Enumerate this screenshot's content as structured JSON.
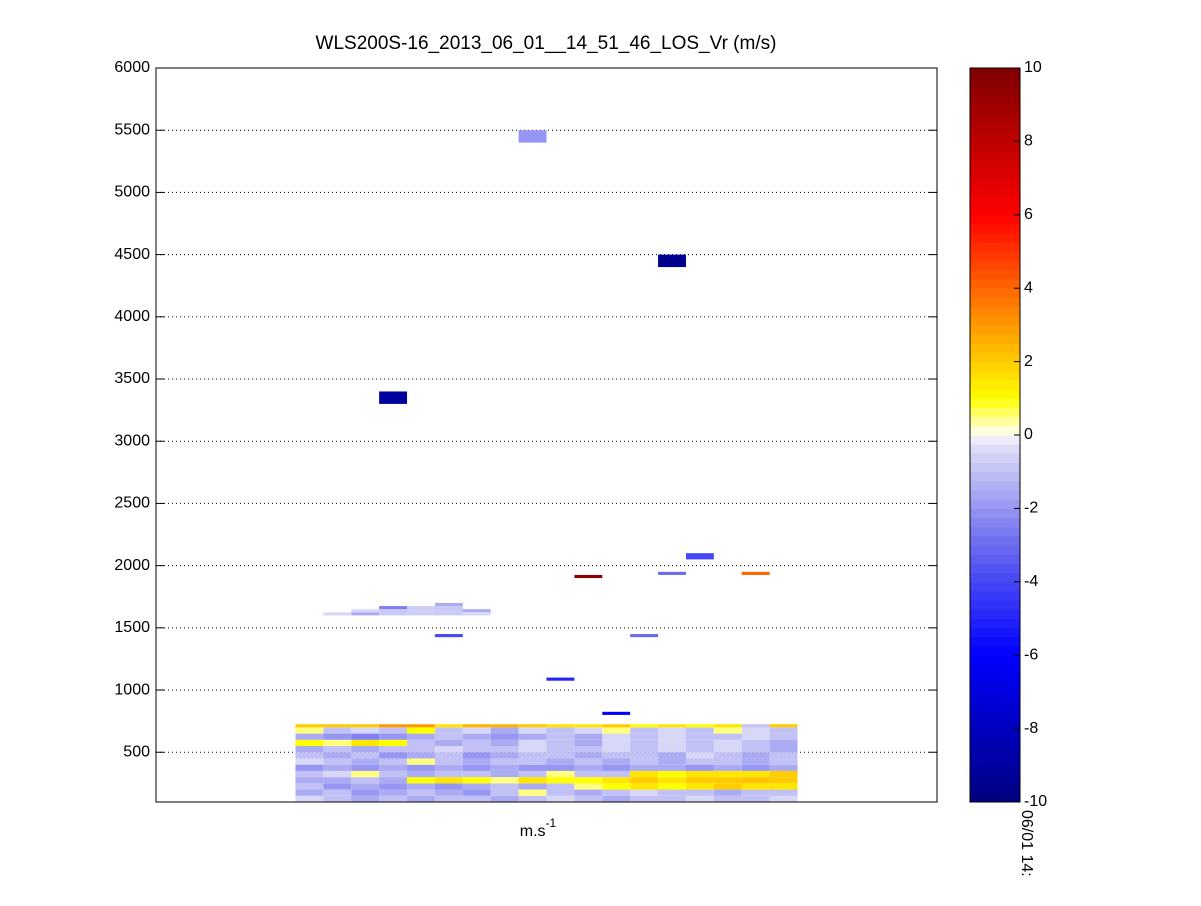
{
  "chart_data": {
    "type": "heatmap",
    "title": "WLS200S-16_2013_06_01__14_51_46_LOS_Vr (m/s)",
    "xlabel": {
      "base": "m.s",
      "exponent": "-1"
    },
    "x_tick_label": "06/01 14:",
    "xlim": [
      0,
      28
    ],
    "ylim": [
      100,
      6000
    ],
    "yticks": [
      500,
      1000,
      1500,
      2000,
      2500,
      3000,
      3500,
      4000,
      4500,
      5000,
      5500,
      6000
    ],
    "grid": true,
    "clim": [
      -10,
      10
    ],
    "cticks": [
      -10,
      -8,
      -6,
      -4,
      -2,
      0,
      2,
      4,
      6,
      8,
      10
    ],
    "colorscale": [
      [
        -10,
        "#00007f"
      ],
      [
        -6,
        "#0000ff"
      ],
      [
        -3,
        "#6a6af0"
      ],
      [
        -0.2,
        "#e4e4f8"
      ],
      [
        0,
        "#ffffff"
      ],
      [
        1,
        "#ffff00"
      ],
      [
        2,
        "#ffcc00"
      ],
      [
        4,
        "#ff6600"
      ],
      [
        6,
        "#ff0000"
      ],
      [
        10,
        "#7f0000"
      ]
    ],
    "grid_block": {
      "x_edges": [
        5,
        6,
        7,
        8,
        9,
        10,
        11,
        12,
        13,
        14,
        15,
        16,
        17,
        18,
        19,
        20,
        21,
        22,
        23
      ],
      "y_edges": [
        100,
        150,
        200,
        250,
        300,
        350,
        400,
        450,
        500,
        550,
        600,
        650,
        700,
        725
      ],
      "values": [
        [
          -0.5,
          -1,
          -1.5,
          -1,
          -1.5,
          -1,
          -1,
          -1.5,
          -1,
          -0.5,
          -1,
          -1.5,
          -1,
          -1,
          -0.5,
          -1,
          -1,
          -0.5
        ],
        [
          -1.5,
          -1,
          -2,
          -1.5,
          -1,
          -1.5,
          -2,
          -1,
          0.5,
          -1,
          -1.5,
          -1,
          -0.5,
          -1,
          -1,
          -1.5,
          -1,
          -1
        ],
        [
          -1,
          -2,
          -1.5,
          -2,
          -1.5,
          -2,
          -1.5,
          -1,
          -1.5,
          -1,
          0.5,
          1,
          1.5,
          1,
          1.5,
          2,
          1.5,
          1.5
        ],
        [
          -1.5,
          -1.5,
          -1,
          -1.5,
          1,
          1.5,
          1,
          0.5,
          1.5,
          1,
          1,
          1.5,
          2,
          1.5,
          2,
          2,
          2.2,
          2
        ],
        [
          -1,
          -0.5,
          0.5,
          -1,
          -1.5,
          -1,
          -1,
          -1.5,
          -1,
          0.5,
          -1,
          -1,
          1.5,
          1,
          1.5,
          1.5,
          1.5,
          2
        ],
        [
          -2,
          -1.5,
          -2,
          -1.5,
          -2,
          -1.5,
          -2,
          -1.5,
          -2,
          -2,
          -1.5,
          -2,
          -1.5,
          -1.5,
          -2,
          -1.5,
          -2,
          -1.5
        ],
        [
          -0.5,
          -1,
          -1.5,
          -1,
          0.5,
          -1,
          -1.5,
          -1,
          -1,
          -1.5,
          -1,
          -1.5,
          -1,
          -1.5,
          -1,
          -1,
          -1.5,
          -1
        ],
        [
          -1,
          -1.5,
          -1,
          -2,
          -1.5,
          -1,
          -2,
          -1.5,
          -1,
          -1,
          -1.5,
          -1,
          -1,
          -1.5,
          -0.5,
          -1,
          -1.5,
          -1
        ],
        [
          -1.5,
          -1,
          -1.5,
          -1,
          -1,
          -0.5,
          -1,
          -1,
          -0.5,
          -1,
          -1,
          -0.5,
          -1,
          -0.5,
          -1,
          -0.5,
          -1,
          -1.5
        ],
        [
          1,
          0.5,
          1.5,
          1,
          -1,
          -1.5,
          -1,
          -1.5,
          -0.5,
          -1,
          -1.5,
          -0.5,
          -1,
          -0.5,
          -1,
          -0.5,
          -1,
          -1.5
        ],
        [
          -1.5,
          -2,
          -2.5,
          -2,
          -1.5,
          -1,
          -1.5,
          -2,
          -1.5,
          -1,
          -1.5,
          -0.5,
          -1,
          -0.5,
          -1,
          -1,
          -0.5,
          -1
        ],
        [
          0.5,
          -1,
          -0.5,
          -1,
          1,
          -1,
          -0.5,
          -1.5,
          -0.5,
          -1,
          -0.5,
          0.5,
          -1,
          -0.5,
          -1,
          0.5,
          -0.5,
          -1
        ],
        [
          2,
          2,
          2,
          3,
          3,
          1.5,
          2.5,
          2.5,
          2,
          1.5,
          1.5,
          2,
          1,
          1.5,
          1,
          1.5,
          -1,
          2
        ]
      ]
    },
    "cells": [
      {
        "x": [
          13,
          14
        ],
        "y": [
          5400,
          5500
        ],
        "value": -2
      },
      {
        "x": [
          18,
          19
        ],
        "y": [
          4400,
          4500
        ],
        "value": -9.5
      },
      {
        "x": [
          8,
          9
        ],
        "y": [
          3300,
          3400
        ],
        "value": -9
      },
      {
        "x": [
          19,
          20
        ],
        "y": [
          2050,
          2100
        ],
        "value": -4
      },
      {
        "x": [
          18,
          19
        ],
        "y": [
          1925,
          1950
        ],
        "value": -3
      },
      {
        "x": [
          21,
          22
        ],
        "y": [
          1925,
          1950
        ],
        "value": 4
      },
      {
        "x": [
          15,
          16
        ],
        "y": [
          1900,
          1925
        ],
        "value": 9.5
      },
      {
        "x": [
          6,
          7
        ],
        "y": [
          1600,
          1625
        ],
        "value": -0.5
      },
      {
        "x": [
          7,
          8
        ],
        "y": [
          1600,
          1625
        ],
        "value": -1.5
      },
      {
        "x": [
          7,
          8
        ],
        "y": [
          1625,
          1650
        ],
        "value": -0.5
      },
      {
        "x": [
          8,
          9
        ],
        "y": [
          1600,
          1650
        ],
        "value": -0.8
      },
      {
        "x": [
          8,
          9
        ],
        "y": [
          1650,
          1675
        ],
        "value": -2.5
      },
      {
        "x": [
          9,
          10
        ],
        "y": [
          1600,
          1675
        ],
        "value": -0.7
      },
      {
        "x": [
          10,
          11
        ],
        "y": [
          1600,
          1675
        ],
        "value": -0.8
      },
      {
        "x": [
          10,
          11
        ],
        "y": [
          1675,
          1700
        ],
        "value": -1.5
      },
      {
        "x": [
          11,
          12
        ],
        "y": [
          1625,
          1650
        ],
        "value": -1.5
      },
      {
        "x": [
          11,
          12
        ],
        "y": [
          1600,
          1625
        ],
        "value": -0.5
      },
      {
        "x": [
          10,
          11
        ],
        "y": [
          1425,
          1450
        ],
        "value": -4
      },
      {
        "x": [
          17,
          18
        ],
        "y": [
          1425,
          1450
        ],
        "value": -3
      },
      {
        "x": [
          14,
          15
        ],
        "y": [
          1075,
          1100
        ],
        "value": -5
      },
      {
        "x": [
          16,
          17
        ],
        "y": [
          800,
          825
        ],
        "value": -6
      }
    ]
  }
}
